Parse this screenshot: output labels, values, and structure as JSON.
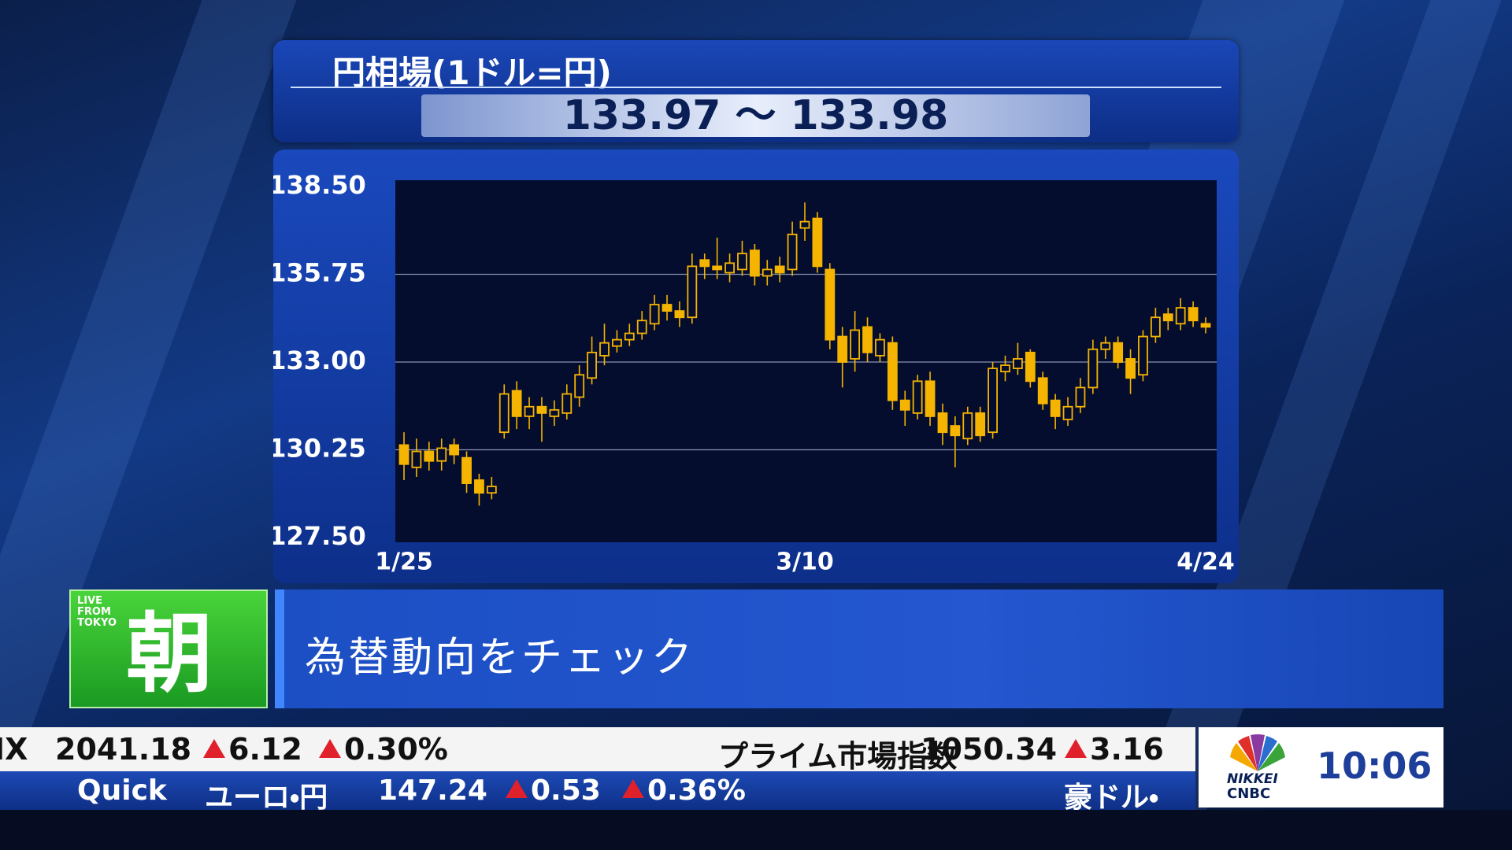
{
  "header": {
    "title": "円相場(1ドル=円)",
    "rate": "133.97 〜 133.98"
  },
  "chart_data": {
    "type": "candlestick",
    "categories": [
      "1/25",
      null,
      null,
      null,
      null,
      null,
      null,
      null,
      null,
      null,
      null,
      null,
      null,
      null,
      null,
      null,
      null,
      null,
      null,
      null,
      null,
      null,
      null,
      null,
      null,
      null,
      null,
      null,
      null,
      null,
      null,
      null,
      "3/10",
      null,
      null,
      null,
      null,
      null,
      null,
      null,
      null,
      null,
      null,
      null,
      null,
      null,
      null,
      null,
      null,
      null,
      null,
      null,
      null,
      null,
      null,
      null,
      null,
      null,
      null,
      null,
      null,
      null,
      null,
      null,
      "4/24"
    ],
    "series": [
      {
        "color": "#f5b400",
        "open": [
          130.4,
          129.7,
          130.2,
          129.9,
          130.4,
          130.0,
          129.3,
          128.9,
          130.8,
          132.1,
          131.3,
          131.6,
          131.3,
          131.4,
          131.9,
          132.5,
          133.2,
          133.5,
          133.7,
          133.9,
          134.2,
          134.8,
          134.6,
          134.4,
          136.2,
          136.0,
          135.8,
          135.9,
          136.5,
          135.7,
          136.0,
          135.9,
          137.2,
          137.5,
          135.9,
          133.8,
          133.1,
          134.1,
          133.2,
          133.6,
          131.8,
          131.4,
          132.4,
          131.4,
          131.0,
          130.6,
          131.4,
          130.8,
          132.7,
          132.8,
          133.3,
          132.5,
          131.8,
          131.2,
          131.6,
          132.2,
          133.4,
          133.6,
          133.1,
          132.6,
          133.8,
          134.5,
          134.2,
          134.7,
          134.2
        ],
        "high": [
          130.8,
          130.6,
          130.5,
          130.6,
          130.6,
          130.2,
          129.5,
          129.4,
          132.3,
          132.4,
          131.9,
          131.9,
          131.8,
          132.3,
          132.9,
          133.8,
          134.2,
          134.0,
          134.2,
          134.6,
          135.1,
          135.1,
          134.9,
          136.4,
          136.4,
          136.9,
          136.4,
          136.8,
          136.7,
          136.2,
          136.3,
          137.4,
          138.0,
          137.7,
          136.1,
          134.1,
          134.6,
          134.4,
          133.9,
          133.8,
          132.1,
          132.6,
          132.7,
          131.7,
          131.3,
          131.6,
          131.6,
          133.0,
          133.2,
          133.6,
          133.4,
          132.7,
          132.0,
          131.9,
          132.5,
          133.7,
          133.8,
          133.8,
          133.4,
          134.0,
          134.7,
          134.7,
          135.0,
          134.9,
          134.4
        ],
        "low": [
          129.3,
          129.4,
          129.6,
          129.6,
          129.8,
          128.9,
          128.5,
          128.7,
          130.6,
          130.9,
          130.9,
          130.5,
          131.0,
          131.2,
          131.6,
          132.3,
          132.9,
          133.3,
          133.5,
          133.7,
          134.0,
          134.3,
          134.1,
          134.2,
          135.6,
          135.6,
          135.5,
          135.7,
          135.4,
          135.4,
          135.5,
          135.7,
          136.8,
          135.8,
          133.4,
          132.2,
          132.7,
          133.0,
          133.0,
          131.5,
          131.0,
          131.2,
          131.0,
          130.4,
          129.7,
          130.4,
          130.5,
          130.6,
          132.4,
          132.6,
          132.2,
          131.5,
          130.9,
          131.0,
          131.4,
          132.0,
          133.1,
          132.8,
          132.0,
          132.4,
          133.6,
          134.0,
          134.0,
          134.1,
          133.9
        ],
        "close": [
          129.8,
          130.2,
          129.9,
          130.3,
          130.1,
          129.2,
          128.9,
          129.1,
          132.0,
          131.3,
          131.6,
          131.4,
          131.5,
          132.0,
          132.6,
          133.3,
          133.6,
          133.7,
          133.9,
          134.3,
          134.8,
          134.6,
          134.4,
          136.0,
          136.0,
          135.9,
          136.1,
          136.4,
          135.7,
          135.9,
          135.8,
          137.0,
          137.4,
          136.0,
          133.7,
          133.0,
          134.0,
          133.3,
          133.7,
          131.8,
          131.5,
          132.4,
          131.3,
          130.8,
          130.7,
          131.4,
          130.7,
          132.8,
          132.9,
          133.1,
          132.4,
          131.7,
          131.3,
          131.6,
          132.2,
          133.4,
          133.6,
          133.0,
          132.5,
          133.8,
          134.4,
          134.3,
          134.7,
          134.3,
          134.1
        ]
      }
    ],
    "ylim": [
      127.5,
      138.5
    ],
    "yticks": [
      {
        "value": 138.5,
        "label": "138.50"
      },
      135.75,
      {
        "value": 133,
        "label": "133.00"
      },
      130.25,
      {
        "value": 127.5,
        "label": "127.50"
      }
    ],
    "grid": true
  },
  "banner": {
    "badge_small": [
      "LIVE",
      "FROM",
      "TOKYO"
    ],
    "badge": "朝",
    "headline": "為替動向をチェック"
  },
  "ticker": {
    "row1": [
      {
        "label": "IX"
      },
      {
        "label": "2041.18"
      },
      {
        "label": "6.12",
        "up": true
      },
      {
        "label": "0.30%",
        "up": true
      },
      {
        "label": "プライム市場指数"
      },
      {
        "label": "1050.34"
      },
      {
        "label": "3.16",
        "up": true
      }
    ],
    "row2": [
      {
        "label": "Quick"
      },
      {
        "label": "ユーロ・円"
      },
      {
        "label": "147.24"
      },
      {
        "label": "0.53",
        "up": true
      },
      {
        "label": "0.36%",
        "up": true
      },
      {
        "label": "豪ドル・"
      }
    ]
  },
  "logo": {
    "brand1": "NIKKEI",
    "brand2": "CNBC",
    "time": "10:06"
  }
}
